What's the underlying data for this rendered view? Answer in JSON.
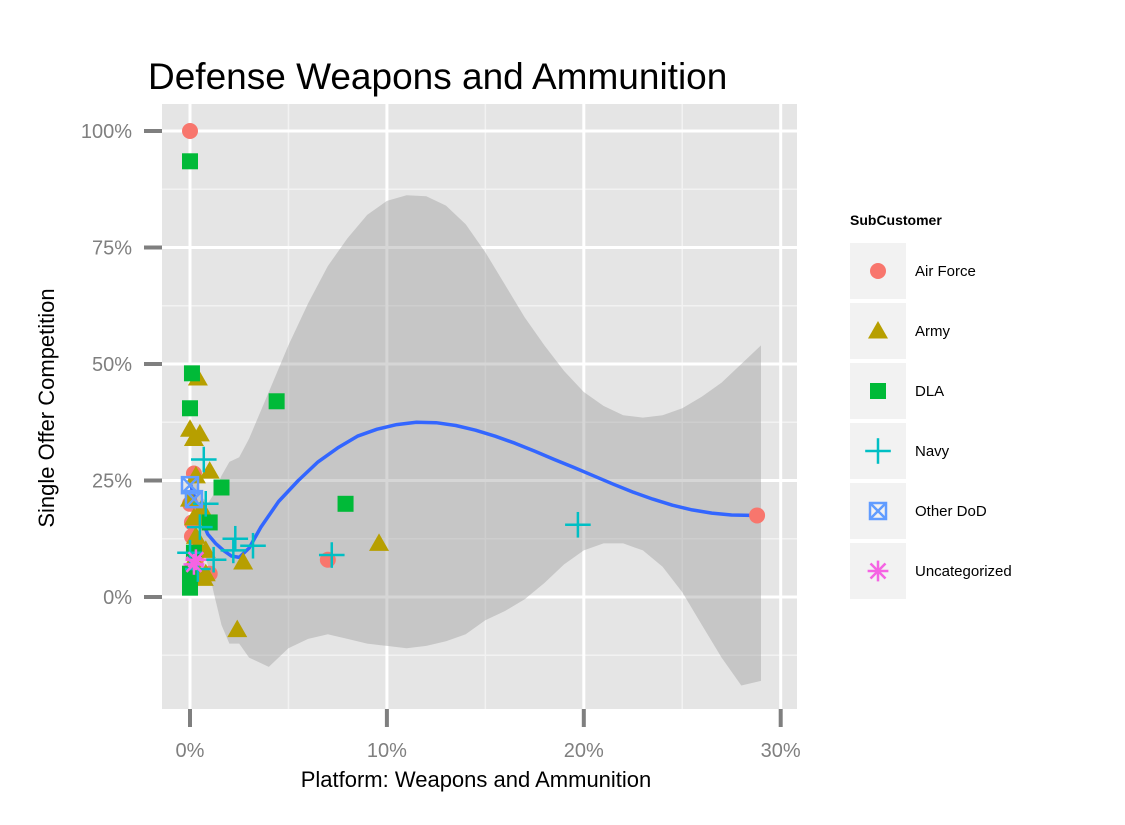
{
  "chart_data": {
    "type": "scatter",
    "title": "Defense Weapons and Ammunition",
    "xlabel": "Platform: Weapons and Ammunition",
    "ylabel": "Single Offer Competition",
    "xlim": [
      -0.015,
      0.305
    ],
    "ylim": [
      -0.24,
      1.04
    ],
    "x_ticks": [
      0,
      0.1,
      0.2,
      0.3
    ],
    "x_tick_labels": [
      "0%",
      "10%",
      "20%",
      "30%"
    ],
    "y_ticks": [
      0,
      0.25,
      0.5,
      0.75,
      1.0
    ],
    "y_tick_labels": [
      "0%",
      "25%",
      "50%",
      "75%",
      "100%"
    ],
    "grid": true,
    "legend_title": "SubCustomer",
    "legend_position": "right",
    "series": [
      {
        "name": "Air Force",
        "color": "#F8766D",
        "shape": "circle",
        "points": [
          [
            0.0,
            1.0
          ],
          [
            0.002,
            0.265
          ],
          [
            0.0,
            0.2
          ],
          [
            0.001,
            0.16
          ],
          [
            0.001,
            0.13
          ],
          [
            0.002,
            0.1
          ],
          [
            0.003,
            0.08
          ],
          [
            0.0,
            0.05
          ],
          [
            0.01,
            0.05
          ],
          [
            0.07,
            0.08
          ],
          [
            0.288,
            0.175
          ]
        ]
      },
      {
        "name": "Army",
        "color": "#B79F00",
        "shape": "triangle",
        "points": [
          [
            0.0,
            0.36
          ],
          [
            0.002,
            0.34
          ],
          [
            0.005,
            0.35
          ],
          [
            0.004,
            0.47
          ],
          [
            0.0,
            0.21
          ],
          [
            0.003,
            0.26
          ],
          [
            0.01,
            0.27
          ],
          [
            0.002,
            0.17
          ],
          [
            0.006,
            0.19
          ],
          [
            0.008,
            0.17
          ],
          [
            0.003,
            0.13
          ],
          [
            0.004,
            0.11
          ],
          [
            0.008,
            0.1
          ],
          [
            0.002,
            0.08
          ],
          [
            0.003,
            0.06
          ],
          [
            0.007,
            0.04
          ],
          [
            0.008,
            0.05
          ],
          [
            0.027,
            0.075
          ],
          [
            0.024,
            -0.07
          ],
          [
            0.096,
            0.115
          ]
        ]
      },
      {
        "name": "DLA",
        "color": "#00BA38",
        "shape": "square",
        "points": [
          [
            0.0,
            0.935
          ],
          [
            0.001,
            0.48
          ],
          [
            0.0,
            0.405
          ],
          [
            0.044,
            0.42
          ],
          [
            0.016,
            0.235
          ],
          [
            0.079,
            0.2
          ],
          [
            0.01,
            0.16
          ],
          [
            0.002,
            0.095
          ],
          [
            0.0,
            0.05
          ],
          [
            0.0,
            0.02
          ]
        ]
      },
      {
        "name": "Navy",
        "color": "#00BFC4",
        "shape": "plus",
        "points": [
          [
            0.007,
            0.295
          ],
          [
            0.008,
            0.2
          ],
          [
            0.005,
            0.15
          ],
          [
            0.023,
            0.125
          ],
          [
            0.032,
            0.11
          ],
          [
            0.022,
            0.1
          ],
          [
            0.0,
            0.095
          ],
          [
            0.012,
            0.08
          ],
          [
            0.004,
            0.06
          ],
          [
            0.072,
            0.09
          ],
          [
            0.197,
            0.155
          ]
        ]
      },
      {
        "name": "Other DoD",
        "color": "#619CFF",
        "shape": "square-cross",
        "points": [
          [
            0.0,
            0.24
          ],
          [
            0.002,
            0.21
          ]
        ]
      },
      {
        "name": "Uncategorized",
        "color": "#F564E3",
        "shape": "asterisk",
        "points": [
          [
            0.003,
            0.08
          ],
          [
            0.002,
            0.07
          ]
        ]
      }
    ],
    "smooth": {
      "color": "#3366FF",
      "points": [
        [
          0.0,
          0.245
        ],
        [
          0.003,
          0.205
        ],
        [
          0.006,
          0.165
        ],
        [
          0.009,
          0.135
        ],
        [
          0.013,
          0.115
        ],
        [
          0.017,
          0.1
        ],
        [
          0.021,
          0.088
        ],
        [
          0.025,
          0.085
        ],
        [
          0.03,
          0.105
        ],
        [
          0.036,
          0.15
        ],
        [
          0.045,
          0.205
        ],
        [
          0.055,
          0.25
        ],
        [
          0.065,
          0.29
        ],
        [
          0.075,
          0.32
        ],
        [
          0.085,
          0.345
        ],
        [
          0.095,
          0.36
        ],
        [
          0.105,
          0.37
        ],
        [
          0.115,
          0.375
        ],
        [
          0.125,
          0.374
        ],
        [
          0.135,
          0.368
        ],
        [
          0.145,
          0.358
        ],
        [
          0.155,
          0.345
        ],
        [
          0.165,
          0.33
        ],
        [
          0.175,
          0.313
        ],
        [
          0.185,
          0.295
        ],
        [
          0.195,
          0.278
        ],
        [
          0.205,
          0.26
        ],
        [
          0.215,
          0.242
        ],
        [
          0.225,
          0.225
        ],
        [
          0.235,
          0.21
        ],
        [
          0.245,
          0.197
        ],
        [
          0.255,
          0.187
        ],
        [
          0.265,
          0.18
        ],
        [
          0.275,
          0.176
        ],
        [
          0.288,
          0.175
        ]
      ]
    },
    "confidence_band": {
      "color": "#999999",
      "upper": [
        [
          0.0,
          0.27
        ],
        [
          0.003,
          0.245
        ],
        [
          0.006,
          0.215
        ],
        [
          0.009,
          0.2
        ],
        [
          0.012,
          0.22
        ],
        [
          0.016,
          0.26
        ],
        [
          0.02,
          0.29
        ],
        [
          0.025,
          0.3
        ],
        [
          0.03,
          0.34
        ],
        [
          0.04,
          0.44
        ],
        [
          0.05,
          0.54
        ],
        [
          0.06,
          0.63
        ],
        [
          0.07,
          0.71
        ],
        [
          0.08,
          0.77
        ],
        [
          0.09,
          0.82
        ],
        [
          0.1,
          0.85
        ],
        [
          0.11,
          0.862
        ],
        [
          0.12,
          0.86
        ],
        [
          0.13,
          0.84
        ],
        [
          0.14,
          0.8
        ],
        [
          0.15,
          0.74
        ],
        [
          0.16,
          0.67
        ],
        [
          0.17,
          0.6
        ],
        [
          0.18,
          0.54
        ],
        [
          0.19,
          0.485
        ],
        [
          0.2,
          0.44
        ],
        [
          0.21,
          0.41
        ],
        [
          0.22,
          0.39
        ],
        [
          0.23,
          0.385
        ],
        [
          0.24,
          0.39
        ],
        [
          0.25,
          0.405
        ],
        [
          0.26,
          0.43
        ],
        [
          0.27,
          0.46
        ],
        [
          0.28,
          0.5
        ],
        [
          0.29,
          0.54
        ]
      ],
      "lower": [
        [
          0.0,
          0.22
        ],
        [
          0.003,
          0.165
        ],
        [
          0.006,
          0.115
        ],
        [
          0.009,
          0.07
        ],
        [
          0.012,
          0.01
        ],
        [
          0.016,
          -0.06
        ],
        [
          0.02,
          -0.1
        ],
        [
          0.025,
          -0.1
        ],
        [
          0.03,
          -0.13
        ],
        [
          0.04,
          -0.15
        ],
        [
          0.05,
          -0.11
        ],
        [
          0.06,
          -0.09
        ],
        [
          0.07,
          -0.08
        ],
        [
          0.08,
          -0.09
        ],
        [
          0.09,
          -0.1
        ],
        [
          0.1,
          -0.105
        ],
        [
          0.11,
          -0.11
        ],
        [
          0.12,
          -0.105
        ],
        [
          0.13,
          -0.095
        ],
        [
          0.14,
          -0.08
        ],
        [
          0.15,
          -0.05
        ],
        [
          0.16,
          -0.03
        ],
        [
          0.17,
          -0.005
        ],
        [
          0.18,
          0.03
        ],
        [
          0.19,
          0.07
        ],
        [
          0.2,
          0.1
        ],
        [
          0.21,
          0.115
        ],
        [
          0.22,
          0.115
        ],
        [
          0.23,
          0.1
        ],
        [
          0.24,
          0.065
        ],
        [
          0.25,
          0.01
        ],
        [
          0.26,
          -0.06
        ],
        [
          0.27,
          -0.13
        ],
        [
          0.28,
          -0.19
        ],
        [
          0.29,
          -0.18
        ]
      ]
    }
  }
}
